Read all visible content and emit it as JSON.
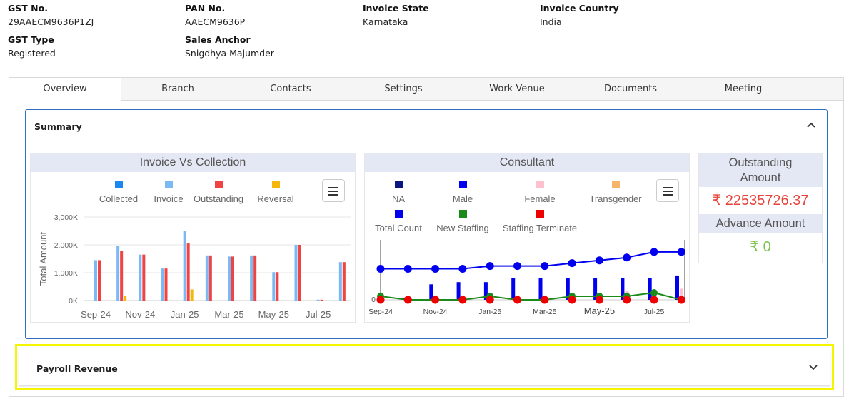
{
  "info": {
    "gst_no_label": "GST No.",
    "gst_no": "29AAECM9636P1ZJ",
    "pan_no_label": "PAN No.",
    "pan_no": "AAECM9636P",
    "invoice_state_label": "Invoice State",
    "invoice_state": "Karnataka",
    "invoice_country_label": "Invoice Country",
    "invoice_country": "India",
    "gst_type_label": "GST Type",
    "gst_type": "Registered",
    "sales_anchor_label": "Sales Anchor",
    "sales_anchor": "Snigdhya Majumder"
  },
  "tabs": [
    "Overview",
    "Branch",
    "Contacts",
    "Settings",
    "Work Venue",
    "Documents",
    "Meeting"
  ],
  "summary": {
    "title": "Summary"
  },
  "payroll": {
    "title": "Payroll Revenue"
  },
  "outstanding": {
    "label_line1": "Outstanding",
    "label_line2": "Amount",
    "value": "₹ 22535726.37"
  },
  "advance": {
    "label": "Advance Amount",
    "value": "₹ 0"
  },
  "colors": {
    "collected": "#1a86f0",
    "invoice": "#7cb9f2",
    "outstanding": "#f04444",
    "reversal": "#f5b70a",
    "na": "#0b1780",
    "male": "#0000ee",
    "female": "#ffc0d0",
    "transgender": "#f7b56a",
    "total": "#0000ee",
    "new_staffing": "#1a8a1a",
    "terminate": "#ee0000"
  },
  "chart_data": [
    {
      "type": "bar",
      "title": "Invoice Vs Collection",
      "ylabel": "Total Amount",
      "ylim": [
        0,
        3000
      ],
      "yticks": [
        "0K",
        "1,000K",
        "2,000K",
        "3,000K"
      ],
      "xtick_labels": [
        "Sep-24",
        "Nov-24",
        "Jan-25",
        "Mar-25",
        "May-25",
        "Jul-25"
      ],
      "legend": [
        "Collected",
        "Invoice",
        "Outstanding",
        "Reversal"
      ],
      "categories": [
        "Sep-24",
        "Oct-24",
        "Nov-24",
        "Dec-24",
        "Jan-25",
        "Feb-25",
        "Mar-25",
        "Apr-25",
        "May-25",
        "Jun-25",
        "Jul-25",
        "Aug-25"
      ],
      "series": [
        {
          "name": "Collected",
          "values": [
            0,
            0,
            0,
            0,
            0,
            0,
            0,
            0,
            0,
            0,
            0,
            0
          ]
        },
        {
          "name": "Invoice",
          "values": [
            1450,
            1950,
            1650,
            1150,
            2500,
            1620,
            1580,
            1620,
            1020,
            2000,
            30,
            1380
          ]
        },
        {
          "name": "Outstanding",
          "values": [
            1450,
            1780,
            1650,
            1150,
            2050,
            1620,
            1580,
            1620,
            1020,
            2000,
            30,
            1380
          ]
        },
        {
          "name": "Reversal",
          "values": [
            0,
            170,
            0,
            0,
            400,
            0,
            0,
            0,
            0,
            0,
            0,
            0
          ]
        }
      ]
    },
    {
      "type": "bar",
      "title": "Consultant",
      "ytick": "0",
      "xtick_labels": [
        "Sep-24",
        "Nov-24",
        "Jan-25",
        "Mar-25",
        "May-25",
        "Jul-25"
      ],
      "legend": [
        "NA",
        "Male",
        "Female",
        "Transgender",
        "Total Count",
        "New Staffing",
        "Staffing Terminate"
      ],
      "categories": [
        "Sep-24",
        "Oct-24",
        "Nov-24",
        "Dec-24",
        "Jan-25",
        "Feb-25",
        "Mar-25",
        "Apr-25",
        "May-25",
        "Jun-25",
        "Jul-25",
        "Aug-25"
      ],
      "series": [
        {
          "name": "Male",
          "values": [
            1,
            7,
            8,
            8,
            10,
            10,
            10,
            10,
            10,
            10,
            11,
            11
          ]
        },
        {
          "name": "Female",
          "values": [
            1,
            2,
            2,
            2,
            2,
            2,
            2,
            3,
            4,
            4,
            5,
            0
          ]
        },
        {
          "name": "Total Count",
          "values": [
            11,
            11,
            11,
            11,
            12,
            12,
            12,
            13,
            14,
            15,
            17,
            17
          ]
        },
        {
          "name": "New Staffing",
          "values": [
            1,
            0,
            0,
            0,
            1,
            0,
            0,
            1,
            1,
            1,
            2,
            0
          ]
        },
        {
          "name": "Staffing Terminate",
          "values": [
            0,
            0,
            0,
            0,
            0,
            0,
            0,
            0,
            0,
            0,
            0,
            0
          ]
        }
      ]
    }
  ]
}
